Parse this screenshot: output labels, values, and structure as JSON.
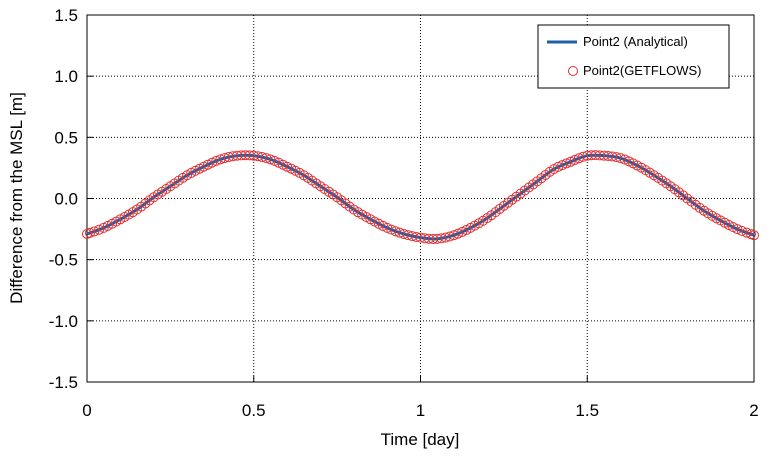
{
  "chart_data": {
    "type": "line",
    "xlabel": "Time [day]",
    "ylabel": "Difference from the MSL [m]",
    "xlim": [
      0,
      2
    ],
    "ylim": [
      -1.5,
      1.5
    ],
    "x_ticks": [
      0,
      0.5,
      1,
      1.5,
      2
    ],
    "x_tick_labels": [
      "0",
      "0.5",
      "1",
      "1.5",
      "2"
    ],
    "y_ticks": [
      -1.5,
      -1.0,
      -0.5,
      0.0,
      0.5,
      1.0,
      1.5
    ],
    "y_tick_labels": [
      "-1.5",
      "-1.0",
      "-0.5",
      "0.0",
      "0.5",
      "1.0",
      "1.5"
    ],
    "grid": true,
    "legend_position": "top-right",
    "series": [
      {
        "name": "Point2 (Analytical)",
        "style": "line",
        "color": "#1f5fa8",
        "x": [
          0,
          0.05,
          0.1,
          0.15,
          0.2,
          0.25,
          0.3,
          0.35,
          0.4,
          0.45,
          0.5,
          0.55,
          0.6,
          0.65,
          0.7,
          0.75,
          0.8,
          0.85,
          0.9,
          0.95,
          1.0,
          1.05,
          1.1,
          1.15,
          1.2,
          1.25,
          1.3,
          1.35,
          1.4,
          1.45,
          1.5,
          1.55,
          1.6,
          1.65,
          1.7,
          1.75,
          1.8,
          1.85,
          1.9,
          1.95,
          2.0
        ],
        "y": [
          -0.29,
          -0.24,
          -0.17,
          -0.09,
          0.01,
          0.1,
          0.19,
          0.26,
          0.32,
          0.35,
          0.35,
          0.32,
          0.26,
          0.19,
          0.1,
          0.01,
          -0.09,
          -0.17,
          -0.24,
          -0.29,
          -0.32,
          -0.33,
          -0.3,
          -0.24,
          -0.16,
          -0.06,
          0.04,
          0.14,
          0.24,
          0.3,
          0.35,
          0.35,
          0.33,
          0.27,
          0.19,
          0.1,
          0.0,
          -0.1,
          -0.18,
          -0.25,
          -0.3
        ]
      },
      {
        "name": "Point2(GETFLOWS)",
        "style": "markers",
        "color": "#e03030",
        "x": [
          0,
          0.05,
          0.1,
          0.15,
          0.2,
          0.25,
          0.3,
          0.35,
          0.4,
          0.45,
          0.5,
          0.55,
          0.6,
          0.65,
          0.7,
          0.75,
          0.8,
          0.85,
          0.9,
          0.95,
          1.0,
          1.05,
          1.1,
          1.15,
          1.2,
          1.25,
          1.3,
          1.35,
          1.4,
          1.45,
          1.5,
          1.55,
          1.6,
          1.65,
          1.7,
          1.75,
          1.8,
          1.85,
          1.9,
          1.95,
          2.0
        ],
        "y": [
          -0.29,
          -0.24,
          -0.17,
          -0.09,
          0.01,
          0.1,
          0.19,
          0.26,
          0.32,
          0.35,
          0.35,
          0.32,
          0.26,
          0.19,
          0.1,
          0.01,
          -0.09,
          -0.17,
          -0.24,
          -0.29,
          -0.32,
          -0.33,
          -0.3,
          -0.24,
          -0.16,
          -0.06,
          0.04,
          0.14,
          0.24,
          0.3,
          0.35,
          0.35,
          0.33,
          0.27,
          0.19,
          0.1,
          0.0,
          -0.1,
          -0.18,
          -0.25,
          -0.3
        ]
      }
    ]
  }
}
